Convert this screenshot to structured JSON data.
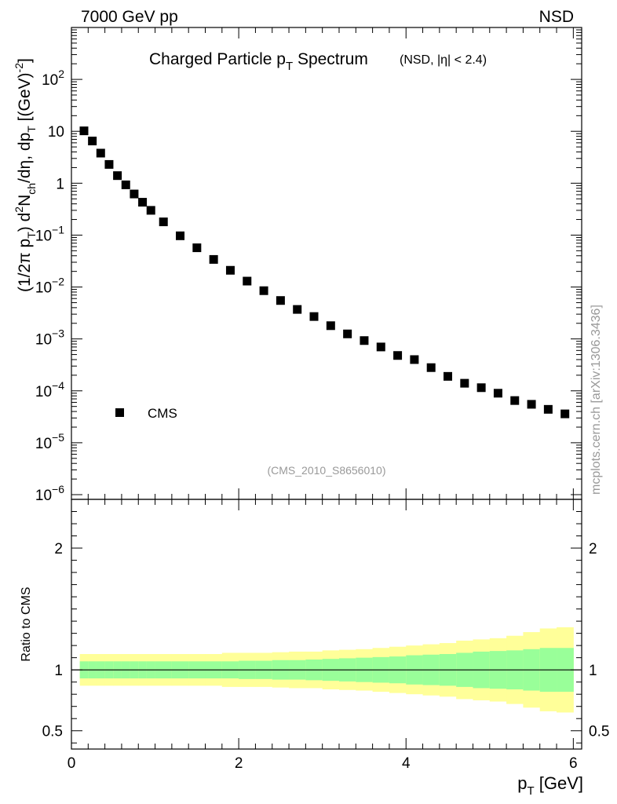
{
  "header": {
    "left": "7000 GeV pp",
    "right": "NSD"
  },
  "watermark": "mcplots.cern.ch [arXiv:1306.3436]",
  "analysis_id": "(CMS_2010_S8656010)",
  "colors": {
    "marker": "#000000",
    "band_inner": "#99ff99",
    "band_outer": "#ffff99",
    "axis": "#000000",
    "faint_text": "#999999"
  },
  "chart_data": [
    {
      "type": "scatter",
      "title_main": "Charged Particle p",
      "title_sub": "T",
      "title_main2": " Spectrum",
      "title_small": "(NSD, |η| < 2.4)",
      "ylabel_parts": {
        "p1": "(1/2π p",
        "s1": "T",
        "p2": ") d",
        "sup": "2",
        "p3": "N",
        "s2": "ch",
        "p4": "/dη, dp",
        "s3": "T",
        "p5": " [(GeV)",
        "sup2": "-2",
        "p6": "]"
      },
      "yscale": "log",
      "ylim": [
        1e-06,
        1000
      ],
      "xlim": [
        0,
        6.1
      ],
      "ytick_labels": [
        {
          "v": 1e-06,
          "base": "10",
          "exp": "−6"
        },
        {
          "v": 1e-05,
          "base": "10",
          "exp": "−5"
        },
        {
          "v": 0.0001,
          "base": "10",
          "exp": "−4"
        },
        {
          "v": 0.001,
          "base": "10",
          "exp": "−3"
        },
        {
          "v": 0.01,
          "base": "10",
          "exp": "−2"
        },
        {
          "v": 0.1,
          "base": "10",
          "exp": "−1"
        },
        {
          "v": 1,
          "base": "1",
          "exp": ""
        },
        {
          "v": 10,
          "base": "10",
          "exp": ""
        },
        {
          "v": 100,
          "base": "10",
          "exp": "2"
        }
      ],
      "legend": {
        "label": "CMS",
        "position": "lower-left"
      },
      "series": [
        {
          "name": "CMS",
          "x": [
            0.15,
            0.25,
            0.35,
            0.45,
            0.55,
            0.65,
            0.75,
            0.85,
            0.95,
            1.1,
            1.3,
            1.5,
            1.7,
            1.9,
            2.1,
            2.3,
            2.5,
            2.7,
            2.9,
            3.1,
            3.3,
            3.5,
            3.7,
            3.9,
            4.1,
            4.3,
            4.5,
            4.7,
            4.9,
            5.1,
            5.3,
            5.5,
            5.7,
            5.9
          ],
          "y": [
            10.2,
            6.5,
            3.8,
            2.3,
            1.4,
            0.93,
            0.62,
            0.43,
            0.3,
            0.18,
            0.097,
            0.057,
            0.034,
            0.021,
            0.013,
            0.0085,
            0.0055,
            0.0037,
            0.0027,
            0.0018,
            0.00125,
            0.00093,
            0.0007,
            0.00048,
            0.0004,
            0.00028,
            0.00019,
            0.00014,
            0.000115,
            9e-05,
            6.5e-05,
            5.5e-05,
            4.4e-05,
            3.6e-05
          ]
        }
      ]
    },
    {
      "type": "area",
      "ylabel": "Ratio to CMS",
      "xlabel_main": "p",
      "xlabel_sub": "T",
      "xlabel_unit": " [GeV]",
      "xlim": [
        0,
        6.1
      ],
      "ylim": [
        0.35,
        2.4
      ],
      "xtick_labels": [
        "0",
        "2",
        "4",
        "6"
      ],
      "xtick_values": [
        0,
        2,
        4,
        6
      ],
      "ytick_labels": [
        "0.5",
        "1",
        "2"
      ],
      "ytick_values": [
        0.5,
        1,
        2
      ],
      "reference_line": 1,
      "bins": {
        "edges": [
          0.1,
          0.2,
          0.3,
          0.4,
          0.5,
          0.6,
          0.7,
          0.8,
          0.9,
          1.0,
          1.2,
          1.4,
          1.6,
          1.8,
          2.0,
          2.2,
          2.4,
          2.6,
          2.8,
          3.0,
          3.2,
          3.4,
          3.6,
          3.8,
          4.0,
          4.2,
          4.4,
          4.6,
          4.8,
          5.0,
          5.2,
          5.4,
          5.6,
          5.8,
          6.0
        ],
        "inner": [
          0.07,
          0.07,
          0.07,
          0.07,
          0.07,
          0.07,
          0.07,
          0.07,
          0.07,
          0.07,
          0.07,
          0.07,
          0.07,
          0.07,
          0.075,
          0.075,
          0.08,
          0.08,
          0.085,
          0.09,
          0.095,
          0.1,
          0.105,
          0.11,
          0.12,
          0.125,
          0.13,
          0.14,
          0.15,
          0.155,
          0.16,
          0.17,
          0.18,
          0.18
        ],
        "outer": [
          0.13,
          0.13,
          0.13,
          0.13,
          0.13,
          0.13,
          0.13,
          0.13,
          0.13,
          0.13,
          0.13,
          0.13,
          0.13,
          0.14,
          0.14,
          0.14,
          0.145,
          0.15,
          0.15,
          0.16,
          0.165,
          0.17,
          0.18,
          0.19,
          0.2,
          0.21,
          0.22,
          0.24,
          0.25,
          0.26,
          0.28,
          0.31,
          0.34,
          0.35
        ]
      }
    }
  ]
}
